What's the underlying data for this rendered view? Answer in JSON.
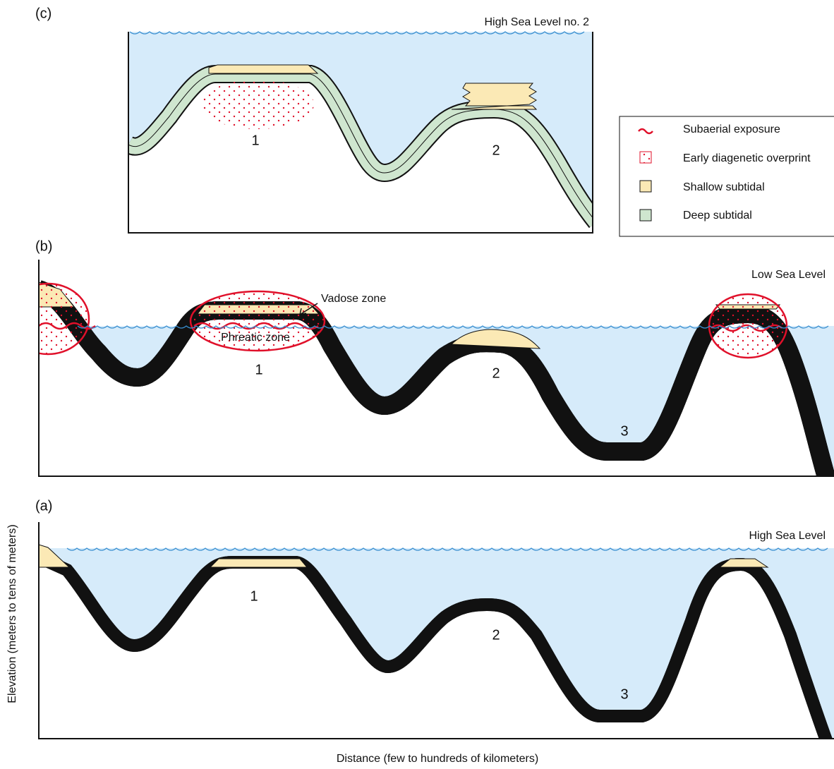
{
  "panels": [
    {
      "label": "(c)",
      "sea_level": "High Sea Level no. 2",
      "sites": [
        "1",
        "2"
      ]
    },
    {
      "label": "(b)",
      "sea_level": "Low Sea Level",
      "sites": [
        "1",
        "2",
        "3"
      ],
      "zones": [
        "Vadose zone",
        "Phreatic zone"
      ]
    },
    {
      "label": "(a)",
      "sea_level": "High Sea Level",
      "sites": [
        "1",
        "2",
        "3"
      ]
    }
  ],
  "legend": [
    "Subaerial exposure",
    "Early diagenetic overprint",
    "Shallow subtidal",
    "Deep subtidal"
  ],
  "y_axis_label": "Elevation (meters to tens of meters)",
  "x_axis_label": "Distance  (few to hundreds of kilometers)"
}
